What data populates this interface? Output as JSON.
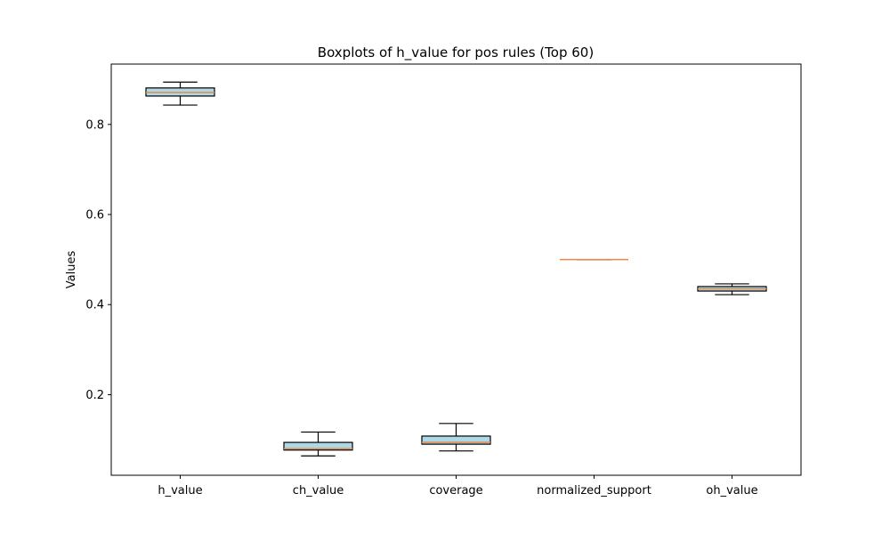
{
  "chart_data": {
    "type": "boxplot",
    "title": "Boxplots of h_value for pos rules (Top 60)",
    "xlabel": "",
    "ylabel": "Values",
    "ylim": [
      0.021,
      0.934
    ],
    "yticks": [
      0.2,
      0.4,
      0.6,
      0.8
    ],
    "grid": false,
    "categories": [
      "h_value",
      "ch_value",
      "coverage",
      "normalized_support",
      "oh_value"
    ],
    "boxes": [
      {
        "category": "h_value",
        "whisker_low": 0.843,
        "q1": 0.863,
        "median": 0.871,
        "q3": 0.881,
        "whisker_high": 0.894
      },
      {
        "category": "ch_value",
        "whisker_low": 0.064,
        "q1": 0.077,
        "median": 0.08,
        "q3": 0.094,
        "whisker_high": 0.117
      },
      {
        "category": "coverage",
        "whisker_low": 0.075,
        "q1": 0.09,
        "median": 0.094,
        "q3": 0.108,
        "whisker_high": 0.136
      },
      {
        "category": "normalized_support",
        "whisker_low": 0.5,
        "q1": 0.5,
        "median": 0.5,
        "q3": 0.5,
        "whisker_high": 0.5
      },
      {
        "category": "oh_value",
        "whisker_low": 0.422,
        "q1": 0.43,
        "median": 0.435,
        "q3": 0.44,
        "whisker_high": 0.446
      }
    ],
    "colors": {
      "box_fill": "#add8e6",
      "median": "#e8884a",
      "edge": "#000000"
    }
  }
}
